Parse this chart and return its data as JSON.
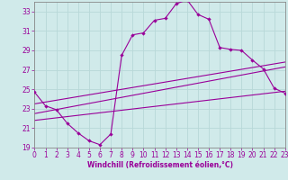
{
  "xlabel": "Windchill (Refroidissement éolien,°C)",
  "xlim": [
    0,
    23
  ],
  "ylim": [
    19,
    34
  ],
  "yticks": [
    19,
    21,
    23,
    25,
    27,
    29,
    31,
    33
  ],
  "xticks": [
    0,
    1,
    2,
    3,
    4,
    5,
    6,
    7,
    8,
    9,
    10,
    11,
    12,
    13,
    14,
    15,
    16,
    17,
    18,
    19,
    20,
    21,
    22,
    23
  ],
  "background_color": "#d0eaea",
  "line_color": "#990099",
  "grid_color": "#b8d8d8",
  "line1_x": [
    0,
    1,
    2,
    3,
    4,
    5,
    6,
    7,
    8,
    9,
    10,
    11,
    12,
    13,
    14,
    15,
    16,
    17,
    18,
    19,
    20,
    21,
    22,
    23
  ],
  "line1_y": [
    24.7,
    23.3,
    22.9,
    21.5,
    20.5,
    19.7,
    19.3,
    20.4,
    28.5,
    30.6,
    30.8,
    32.1,
    32.3,
    33.8,
    34.2,
    32.7,
    32.2,
    29.3,
    29.1,
    29.0,
    28.0,
    27.1,
    25.1,
    24.6
  ],
  "line2_x": [
    0,
    23
  ],
  "line2_y": [
    23.5,
    27.8
  ],
  "line3_x": [
    0,
    23
  ],
  "line3_y": [
    22.5,
    27.3
  ],
  "line4_x": [
    0,
    23
  ],
  "line4_y": [
    21.8,
    24.8
  ],
  "tick_fontsize": 5.5,
  "xlabel_fontsize": 5.5,
  "spine_color": "#888888"
}
